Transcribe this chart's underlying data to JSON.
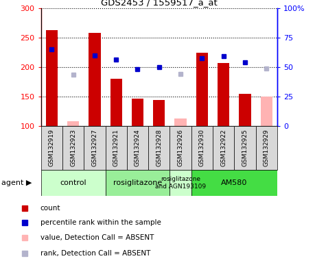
{
  "title": "GDS2453 / 1559517_a_at",
  "samples": [
    "GSM132919",
    "GSM132923",
    "GSM132927",
    "GSM132921",
    "GSM132924",
    "GSM132928",
    "GSM132926",
    "GSM132930",
    "GSM132922",
    "GSM132925",
    "GSM132929"
  ],
  "bar_values": [
    262,
    null,
    258,
    180,
    147,
    144,
    null,
    224,
    207,
    155,
    null
  ],
  "bar_absent_values": [
    null,
    108,
    null,
    null,
    null,
    null,
    113,
    null,
    null,
    null,
    150
  ],
  "rank_present": [
    230,
    null,
    220,
    213,
    196,
    200,
    null,
    215,
    218,
    208,
    null
  ],
  "rank_absent": [
    null,
    187,
    null,
    null,
    null,
    null,
    188,
    null,
    null,
    null,
    198
  ],
  "ylim_left": [
    100,
    300
  ],
  "ylim_right": [
    0,
    100
  ],
  "bar_color": "#cc0000",
  "bar_absent_color": "#ffb3b3",
  "rank_present_color": "#0000cc",
  "rank_absent_color": "#b3b3cc",
  "agent_groups": [
    {
      "label": "control",
      "start": 0,
      "end": 3,
      "color": "#ccffcc"
    },
    {
      "label": "rosiglitazone",
      "start": 3,
      "end": 6,
      "color": "#99ee99"
    },
    {
      "label": "rosiglitazone\nand AGN193109",
      "start": 6,
      "end": 7,
      "color": "#ccffcc"
    },
    {
      "label": "AM580",
      "start": 7,
      "end": 11,
      "color": "#44dd44"
    }
  ],
  "legend_items": [
    {
      "label": "count",
      "color": "#cc0000"
    },
    {
      "label": "percentile rank within the sample",
      "color": "#0000cc"
    },
    {
      "label": "value, Detection Call = ABSENT",
      "color": "#ffb3b3"
    },
    {
      "label": "rank, Detection Call = ABSENT",
      "color": "#b3b3cc"
    }
  ]
}
